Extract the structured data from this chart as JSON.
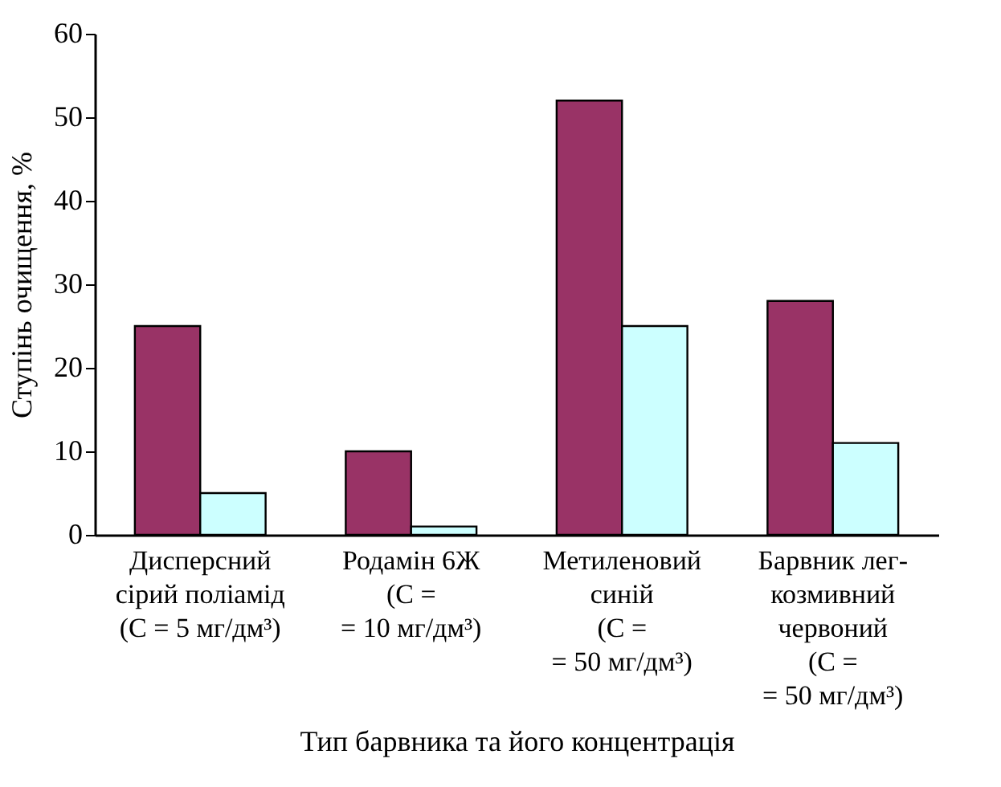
{
  "chart_data": {
    "type": "bar",
    "xlabel": "Тип барвника та його концентрація",
    "ylabel": "Ступінь очищення, %",
    "categories": [
      "Дисперсний\nсірий поліамід\n(C = 5 мг/дм³)",
      "Родамін 6Ж\n(C =\n= 10 мг/дм³)",
      "Метиленовий\nсиній\n(C =\n= 50 мг/дм³)",
      "Барвник лег-\nкозмивний\nчервоний\n(C =\n= 50 мг/дм³)"
    ],
    "series": [
      {
        "color": "#993366",
        "values": [
          25,
          10,
          52,
          28
        ]
      },
      {
        "color": "#ccffff",
        "values": [
          5,
          1,
          25,
          11
        ]
      }
    ],
    "ylim": [
      0,
      60
    ],
    "yticks": [
      0,
      10,
      20,
      30,
      40,
      50,
      60
    ],
    "grid": false,
    "legend": false
  }
}
